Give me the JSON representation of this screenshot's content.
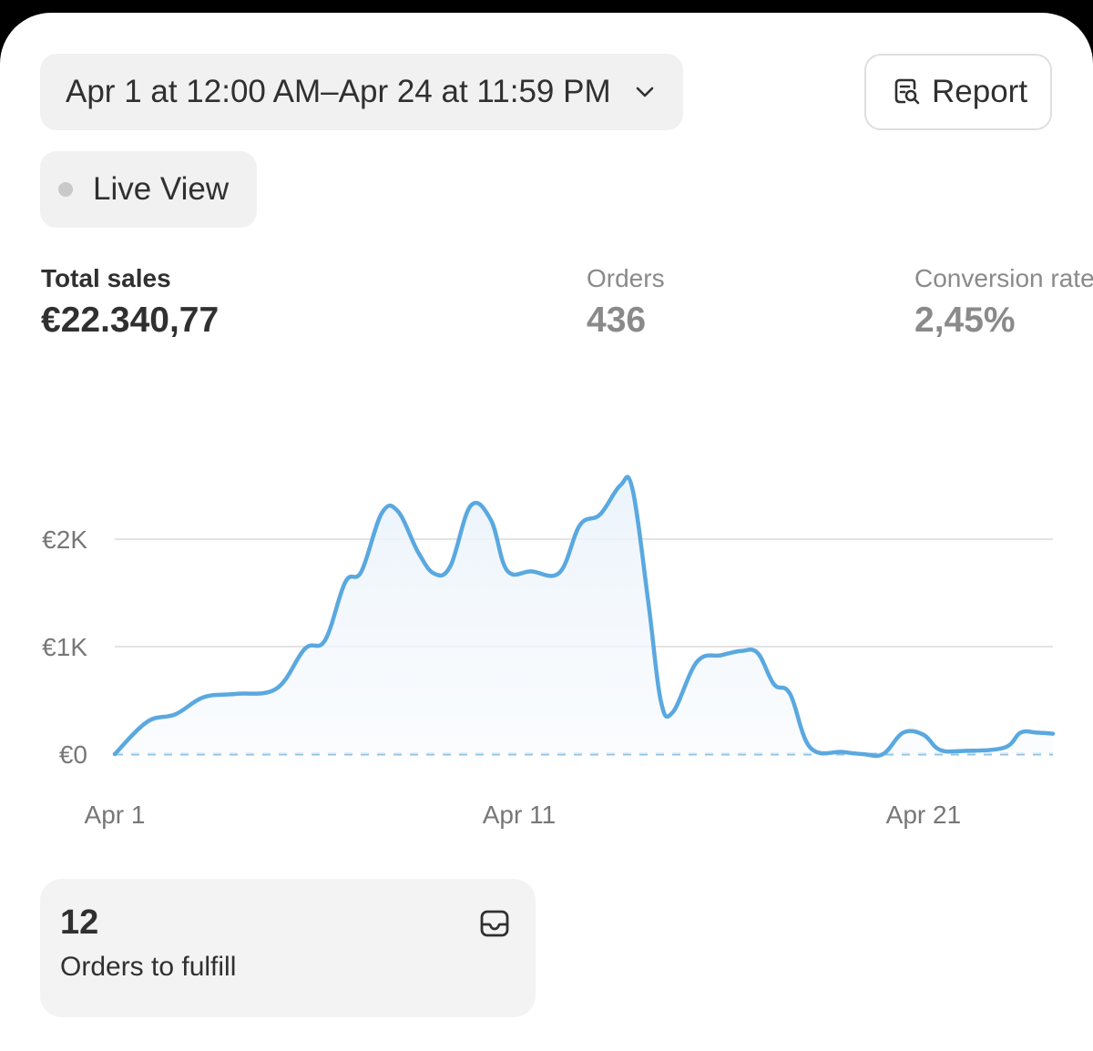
{
  "header": {
    "date_range_label": "Apr 1 at 12:00 AM–Apr 24 at 11:59 PM",
    "date_icon": "chevron-down-icon",
    "report_label": "Report",
    "report_icon": "report-search-icon",
    "live_view_label": "Live View"
  },
  "metrics": [
    {
      "label": "Total sales",
      "value": "€22.340,77",
      "active": true
    },
    {
      "label": "Orders",
      "value": "436",
      "active": false
    },
    {
      "label": "Conversion rate",
      "value": "2,45%",
      "active": false
    }
  ],
  "chart_data": {
    "type": "area",
    "x_labels": [
      "Apr 1",
      "Apr 11",
      "Apr 21"
    ],
    "y_tick_labels": [
      "€0",
      "€1K",
      "€2K"
    ],
    "y_ticks": [
      0,
      1000,
      2000
    ],
    "ylim": [
      0,
      2000
    ],
    "x_range": [
      1,
      24.2
    ],
    "line_color": "#5aa8e0",
    "series": [
      {
        "points": [
          [
            1,
            0
          ],
          [
            1.8,
            300
          ],
          [
            2.5,
            370
          ],
          [
            3.2,
            530
          ],
          [
            4,
            560
          ],
          [
            5,
            610
          ],
          [
            5.7,
            980
          ],
          [
            6.2,
            1060
          ],
          [
            6.7,
            1600
          ],
          [
            7.1,
            1700
          ],
          [
            7.6,
            2240
          ],
          [
            8,
            2260
          ],
          [
            8.5,
            1880
          ],
          [
            8.9,
            1680
          ],
          [
            9.3,
            1750
          ],
          [
            9.8,
            2310
          ],
          [
            10.3,
            2180
          ],
          [
            10.7,
            1710
          ],
          [
            11.3,
            1700
          ],
          [
            12,
            1690
          ],
          [
            12.5,
            2130
          ],
          [
            13,
            2230
          ],
          [
            13.5,
            2500
          ],
          [
            13.8,
            2470
          ],
          [
            14.2,
            1400
          ],
          [
            14.5,
            500
          ],
          [
            14.8,
            390
          ],
          [
            15.4,
            860
          ],
          [
            16,
            920
          ],
          [
            16.5,
            960
          ],
          [
            16.9,
            940
          ],
          [
            17.3,
            650
          ],
          [
            17.7,
            560
          ],
          [
            18.2,
            60
          ],
          [
            19,
            20
          ],
          [
            19.5,
            0
          ],
          [
            20,
            0
          ],
          [
            20.5,
            200
          ],
          [
            21,
            180
          ],
          [
            21.4,
            40
          ],
          [
            22,
            30
          ],
          [
            23,
            60
          ],
          [
            23.4,
            200
          ],
          [
            23.8,
            200
          ],
          [
            24.2,
            190
          ]
        ]
      }
    ],
    "baseline_style": "dashed"
  },
  "fulfill": {
    "count": "12",
    "label": "Orders to fulfill",
    "icon": "inbox-icon"
  }
}
